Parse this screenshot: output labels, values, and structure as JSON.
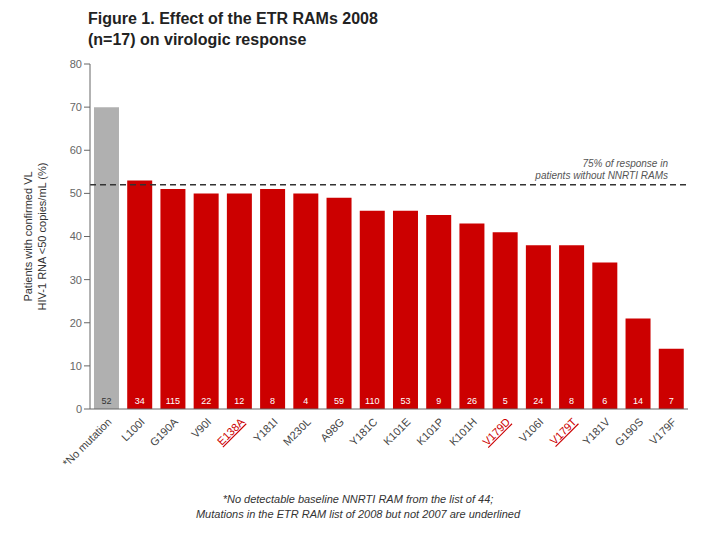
{
  "chart_data": {
    "type": "bar",
    "title": "Figure 1. Effect of the ETR RAMs 2008\n(n=17) on virologic response",
    "ylabel": "Patients with confirmed VL\nHIV-1 RNA <50 copies/mL (%)",
    "categories": [
      "*No mutation",
      "L100I",
      "G190A",
      "V90I",
      "E138A",
      "Y181I",
      "M230L",
      "A98G",
      "Y181C",
      "K101E",
      "K101P",
      "K101H",
      "V179D",
      "V106I",
      "V179T",
      "Y181V",
      "G190S",
      "V179F"
    ],
    "values": [
      70,
      53,
      51,
      50,
      50,
      51,
      50,
      49,
      46,
      46,
      45,
      43,
      41,
      38,
      38,
      34,
      21,
      14
    ],
    "n": [
      52,
      34,
      115,
      22,
      12,
      8,
      4,
      59,
      110,
      53,
      9,
      26,
      5,
      24,
      8,
      6,
      14,
      7
    ],
    "colors": [
      "#b0b0b0",
      "#cc0000",
      "#cc0000",
      "#cc0000",
      "#cc0000",
      "#cc0000",
      "#cc0000",
      "#cc0000",
      "#cc0000",
      "#cc0000",
      "#cc0000",
      "#cc0000",
      "#cc0000",
      "#cc0000",
      "#cc0000",
      "#cc0000",
      "#cc0000",
      "#cc0000"
    ],
    "reference_line": 52,
    "annotation": "75% of response in\npatients without NNRTI RAMs",
    "footnote": "*No detectable baseline NNRTI RAM from the list of 44;\nMutations in the ETR RAM list of 2008 but not 2007 are underlined",
    "underlined_labels": [
      "E138A",
      "V179D",
      "V179T"
    ],
    "ylim": [
      0,
      80
    ],
    "yticks": [
      0,
      10,
      20,
      30,
      40,
      50,
      60,
      70,
      80
    ],
    "grid": false
  }
}
